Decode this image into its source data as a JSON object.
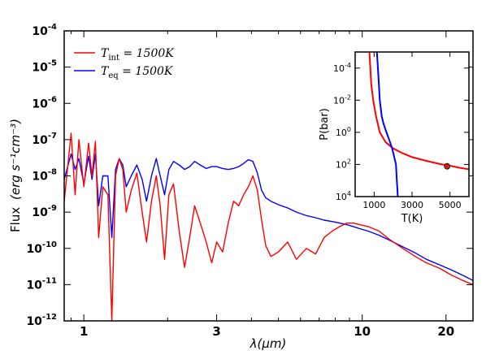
{
  "chart_data": [
    {
      "type": "line",
      "xlabel": "λ(μm)",
      "ylabel": "Flux (erg s⁻¹cm⁻³)",
      "x_scale": "log",
      "y_scale": "log",
      "xlim": [
        0.85,
        25
      ],
      "ylim": [
        1e-12,
        0.0001
      ],
      "x_ticks": [
        1,
        3,
        10,
        20
      ],
      "y_ticks": [
        "10^-12",
        "10^-11",
        "10^-10",
        "10^-9",
        "10^-8",
        "10^-7",
        "10^-6",
        "10^-5",
        "10^-4"
      ],
      "legend_position": "top-left",
      "series": [
        {
          "name": "T_int = 1500K",
          "color": "#ff0000",
          "x": [
            0.85,
            0.9,
            0.93,
            0.96,
            1.0,
            1.04,
            1.07,
            1.1,
            1.13,
            1.17,
            1.22,
            1.26,
            1.3,
            1.34,
            1.38,
            1.42,
            1.48,
            1.55,
            1.62,
            1.68,
            1.75,
            1.82,
            1.88,
            1.95,
            2.02,
            2.1,
            2.2,
            2.3,
            2.4,
            2.5,
            2.62,
            2.75,
            2.88,
            3.0,
            3.15,
            3.3,
            3.45,
            3.6,
            3.75,
            3.9,
            4.05,
            4.2,
            4.35,
            4.5,
            4.7,
            5.0,
            5.4,
            5.8,
            6.3,
            6.8,
            7.3,
            7.8,
            8.3,
            8.8,
            9.3,
            9.8,
            10.5,
            11.5,
            12.5,
            14.0,
            15.5,
            17.0,
            19.0,
            21.0,
            23.0,
            25.0
          ],
          "y": [
            2e-09,
            1.5e-07,
            3e-09,
            1e-07,
            5e-09,
            8e-08,
            1e-08,
            9e-08,
            2e-10,
            5e-09,
            3e-09,
            1e-12,
            1e-08,
            3e-08,
            1.5e-08,
            1e-09,
            4e-09,
            1.2e-08,
            1e-09,
            1.5e-10,
            2e-09,
            1e-08,
            1.5e-09,
            5e-11,
            3e-09,
            6e-09,
            3e-10,
            3e-11,
            2e-10,
            1.5e-09,
            5e-10,
            1.5e-10,
            4e-11,
            1.5e-10,
            8e-11,
            5e-10,
            2e-09,
            1.5e-09,
            3e-09,
            5e-09,
            1e-08,
            4e-09,
            6e-10,
            1.2e-10,
            6e-11,
            8e-11,
            1.5e-10,
            5e-11,
            1e-10,
            7e-11,
            2e-10,
            3e-10,
            4e-10,
            5e-10,
            5e-10,
            4.5e-10,
            4e-10,
            3e-10,
            1.8e-10,
            1e-10,
            6e-11,
            4e-11,
            2.8e-11,
            1.8e-11,
            1.3e-11,
            1e-11
          ]
        },
        {
          "name": "T_eq = 1500K",
          "color": "#0000ff",
          "x": [
            0.85,
            0.9,
            0.93,
            0.96,
            1.0,
            1.04,
            1.07,
            1.1,
            1.13,
            1.17,
            1.22,
            1.26,
            1.3,
            1.34,
            1.38,
            1.42,
            1.48,
            1.55,
            1.62,
            1.68,
            1.75,
            1.82,
            1.88,
            1.95,
            2.02,
            2.1,
            2.2,
            2.3,
            2.4,
            2.5,
            2.62,
            2.75,
            2.88,
            3.0,
            3.15,
            3.3,
            3.45,
            3.6,
            3.75,
            3.9,
            4.05,
            4.2,
            4.35,
            4.5,
            4.7,
            5.0,
            5.4,
            5.8,
            6.3,
            6.8,
            7.3,
            7.8,
            8.3,
            8.8,
            9.3,
            9.8,
            10.5,
            11.5,
            12.5,
            14.0,
            15.5,
            17.0,
            19.0,
            21.0,
            23.0,
            25.0
          ],
          "y": [
            8e-09,
            4e-08,
            1.5e-08,
            3e-08,
            6e-09,
            3.5e-08,
            8e-09,
            4e-08,
            1.5e-09,
            1e-08,
            1e-08,
            2e-10,
            1.5e-08,
            3e-08,
            2e-08,
            5e-09,
            1e-08,
            2e-08,
            8e-09,
            2e-09,
            1e-08,
            3e-08,
            1e-08,
            3e-09,
            1.5e-08,
            2.5e-08,
            2e-08,
            1.5e-08,
            1.8e-08,
            2.5e-08,
            2e-08,
            1.6e-08,
            1.8e-08,
            1.8e-08,
            1.6e-08,
            1.5e-08,
            1.6e-08,
            1.8e-08,
            2.2e-08,
            2.8e-08,
            2.5e-08,
            1.2e-08,
            4e-09,
            2.5e-09,
            2e-09,
            1.6e-09,
            1.3e-09,
            1e-09,
            8e-10,
            7e-10,
            6e-10,
            5.5e-10,
            5e-10,
            4.5e-10,
            4e-10,
            3.5e-10,
            3e-10,
            2.3e-10,
            1.7e-10,
            1.1e-10,
            7.5e-11,
            5e-11,
            3.5e-11,
            2.5e-11,
            1.8e-11,
            1.3e-11
          ]
        }
      ]
    },
    {
      "type": "line",
      "inset": true,
      "xlabel": "T(K)",
      "ylabel": "P(bar)",
      "x_scale": "linear",
      "y_scale": "log",
      "y_inverted": true,
      "xlim": [
        0,
        6000
      ],
      "ylim": [
        1e-05,
        10000.0
      ],
      "x_ticks": [
        1000,
        3000,
        5000
      ],
      "y_ticks": [
        "10^-4",
        "10^-2",
        "10^0",
        "10^2",
        "10^4"
      ],
      "series": [
        {
          "color": "#ff0000",
          "x": [
            750,
            800,
            850,
            950,
            1100,
            1300,
            1600,
            2000,
            2500,
            3000,
            3500,
            4000,
            4500,
            5000,
            5500,
            6000
          ],
          "y": [
            1e-05,
            0.0001,
            0.001,
            0.01,
            0.1,
            1,
            4,
            10,
            20,
            35,
            50,
            70,
            95,
            120,
            160,
            200
          ]
        },
        {
          "color": "#0000ff",
          "x": [
            1150,
            1200,
            1250,
            1300,
            1400,
            1500,
            1650,
            1800,
            1950,
            2050,
            2150,
            2200,
            2250
          ],
          "y": [
            1e-05,
            0.0001,
            0.001,
            0.01,
            0.1,
            0.3,
            1,
            3,
            10,
            30,
            100,
            1000,
            10000
          ]
        }
      ],
      "marker": {
        "x": 4850,
        "y": 130,
        "color": "#cc2222"
      }
    }
  ],
  "legend": {
    "items": [
      {
        "main": "T",
        "sub": "int",
        "rest": " = 1500K",
        "color": "#ff0000"
      },
      {
        "main": "T",
        "sub": "eq",
        "rest": " = 1500K",
        "color": "#0000ff"
      }
    ]
  },
  "axes": {
    "xlabel_main": "λ(μm)",
    "ylabel_main": "Flux",
    "ylabel_units": "(erg s⁻¹cm⁻³)",
    "x_tick_labels": [
      "1",
      "3",
      "10",
      "20"
    ],
    "y_tick_exponents": [
      "-12",
      "-11",
      "-10",
      "-9",
      "-8",
      "-7",
      "-6",
      "-5",
      "-4"
    ],
    "inset_xlabel": "T(K)",
    "inset_ylabel": "P(bar)",
    "inset_x_tick_labels": [
      "1000",
      "3000",
      "5000"
    ],
    "inset_y_tick_exponents": [
      "-4",
      "-2",
      "0",
      "2",
      "4"
    ]
  }
}
